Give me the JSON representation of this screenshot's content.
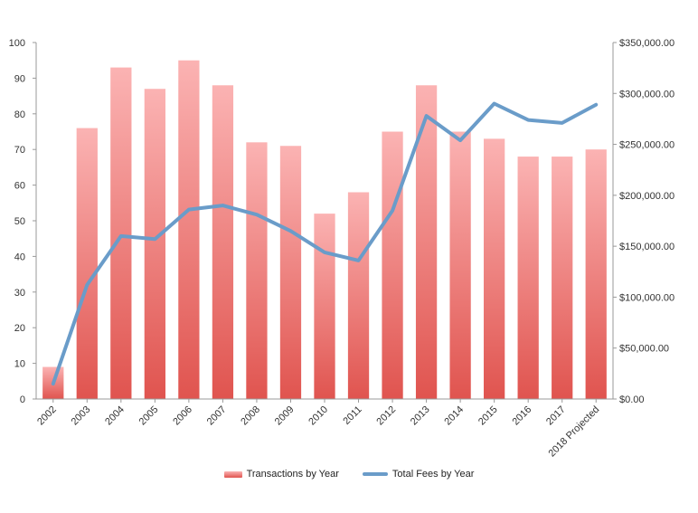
{
  "chart_data": {
    "type": "bar",
    "categories": [
      "2002",
      "2003",
      "2004",
      "2005",
      "2006",
      "2007",
      "2008",
      "2009",
      "2010",
      "2011",
      "2012",
      "2013",
      "2014",
      "2015",
      "2016",
      "2017",
      "2018 Projected"
    ],
    "series": [
      {
        "name": "Transactions by Year",
        "type": "bar",
        "axis": "left",
        "values": [
          9,
          76,
          93,
          87,
          95,
          88,
          72,
          71,
          52,
          58,
          75,
          88,
          75,
          73,
          68,
          68,
          70
        ]
      },
      {
        "name": "Total Fees by Year",
        "type": "line",
        "axis": "right",
        "values": [
          15000,
          112000,
          160000,
          157000,
          186000,
          190000,
          181000,
          165000,
          144000,
          136000,
          185000,
          278000,
          254000,
          290000,
          274000,
          271000,
          289000
        ]
      }
    ],
    "y_left": {
      "ylim": [
        0,
        100
      ],
      "ticks": [
        0,
        10,
        20,
        30,
        40,
        50,
        60,
        70,
        80,
        90,
        100
      ]
    },
    "y_right": {
      "ylim": [
        0,
        350000
      ],
      "ticks": [
        0,
        50000,
        100000,
        150000,
        200000,
        250000,
        300000,
        350000
      ],
      "tick_labels": [
        "$0.00",
        "$50,000.00",
        "$100,000.00",
        "$150,000.00",
        "$200,000.00",
        "$250,000.00",
        "$300,000.00",
        "$350,000.00"
      ]
    },
    "title": "",
    "xlabel": "",
    "grid": false,
    "legend_position": "bottom",
    "colors": {
      "bar_top": "#fbb3b3",
      "bar_bottom": "#e0544f",
      "line": "#6a9cc9",
      "axis": "#999999"
    }
  }
}
